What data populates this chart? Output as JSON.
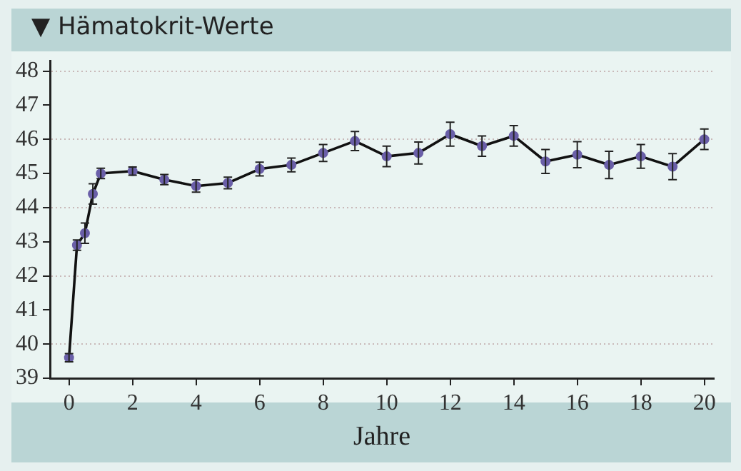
{
  "chart_data": {
    "type": "line",
    "title": "▼ Hämatokrit-Werte",
    "xlabel": "Jahre",
    "x": [
      0,
      0.25,
      0.5,
      0.75,
      1,
      2,
      3,
      4,
      5,
      6,
      7,
      8,
      9,
      10,
      11,
      12,
      13,
      14,
      15,
      16,
      17,
      18,
      19,
      20
    ],
    "series": [
      {
        "color": "#6a5fa8",
        "values": [
          39.6,
          42.9,
          43.25,
          44.4,
          45.0,
          45.07,
          44.82,
          44.63,
          44.72,
          45.13,
          45.25,
          45.6,
          45.95,
          45.5,
          45.6,
          46.15,
          45.8,
          46.1,
          45.35,
          45.55,
          45.25,
          45.5,
          45.2,
          46.0
        ],
        "errors": [
          0.12,
          0.15,
          0.3,
          0.3,
          0.15,
          0.12,
          0.15,
          0.18,
          0.17,
          0.2,
          0.2,
          0.25,
          0.28,
          0.3,
          0.32,
          0.35,
          0.3,
          0.3,
          0.35,
          0.38,
          0.4,
          0.35,
          0.38,
          0.3
        ]
      }
    ],
    "xlim": [
      -0.6,
      20.3
    ],
    "xticks": [
      0,
      2,
      4,
      6,
      8,
      10,
      12,
      14,
      16,
      18,
      20
    ],
    "ylim": [
      39,
      48.3
    ],
    "yticks": [
      39,
      40,
      41,
      42,
      43,
      44,
      45,
      46,
      47,
      48
    ],
    "grid": "y",
    "legend": false,
    "marker": "circle",
    "line_style": "solid"
  }
}
